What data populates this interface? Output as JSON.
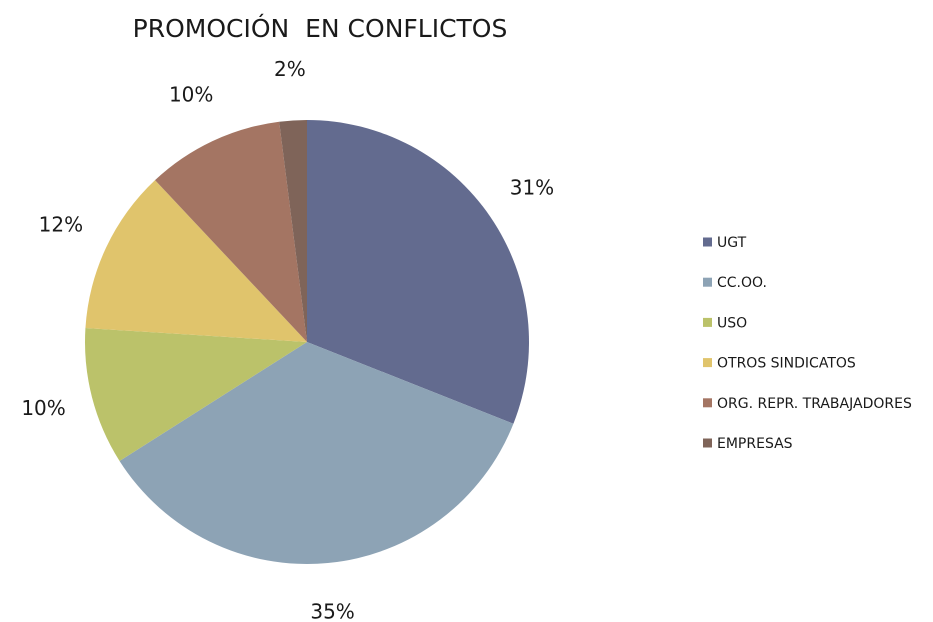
{
  "chart_data": {
    "type": "pie",
    "title": "PROMOCIÓN  EN CONFLICTOS",
    "categories": [
      "UGT",
      "CC.OO.",
      "USO",
      "OTROS SINDICATOS",
      "ORG. REPR. TRABAJADORES",
      "EMPRESAS"
    ],
    "values": [
      31,
      35,
      10,
      12,
      10,
      2
    ],
    "value_labels": [
      "31%",
      "35%",
      "10%",
      "12%",
      "10%",
      "2%"
    ],
    "colors": [
      "#636b8f",
      "#8da3b5",
      "#bbc26a",
      "#e0c46c",
      "#a47563",
      "#7f6459"
    ],
    "legend": "right"
  }
}
